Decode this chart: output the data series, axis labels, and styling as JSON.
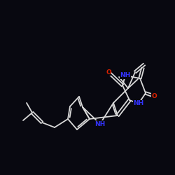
{
  "background_color": "#080810",
  "bond_color": "#d8d8d8",
  "N_color": "#3333ff",
  "O_color": "#dd2200",
  "bond_width": 1.3,
  "figsize": [
    2.5,
    2.5
  ],
  "dpi": 100,
  "xlim": [
    0,
    10
  ],
  "ylim": [
    0,
    10
  ]
}
